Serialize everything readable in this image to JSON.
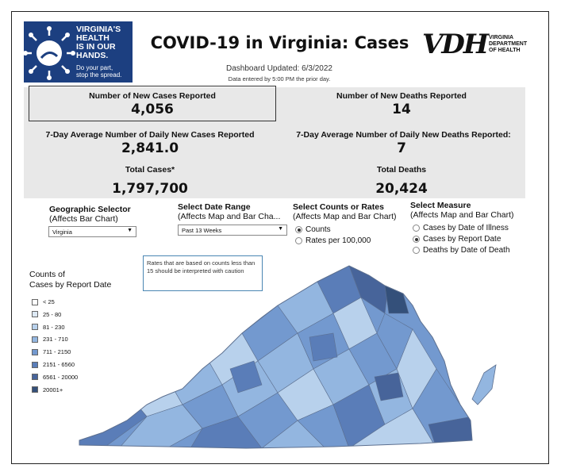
{
  "logo": {
    "line1": "VIRGINIA'S",
    "line2": "HEALTH",
    "line3": "IS IN OUR",
    "line4": "HANDS.",
    "sub1": "Do your part,",
    "sub2": "stop the spread."
  },
  "title": "COVID-19 in Virginia: Cases",
  "vdh": {
    "mark": "VDH",
    "line1": "VIRGINIA",
    "line2": "DEPARTMENT",
    "line3": "OF HEALTH"
  },
  "updated": "Dashboard Updated: 6/3/2022",
  "entered": "Data entered by 5:00 PM the prior day.",
  "stats": {
    "new_cases_label": "Number of New Cases Reported",
    "new_cases_value": "4,056",
    "new_deaths_label": "Number of New Deaths Reported",
    "new_deaths_value": "14",
    "avg_cases_label": "7-Day Average Number of Daily New Cases Reported",
    "avg_cases_value": "2,841.0",
    "avg_deaths_label": "7-Day Average Number of Daily New Deaths Reported:",
    "avg_deaths_value": "7",
    "total_cases_label": "Total Cases*",
    "total_cases_value": "1,797,700",
    "total_deaths_label": "Total Deaths",
    "total_deaths_value": "20,424"
  },
  "controls": {
    "geo_title": "Geographic Selector",
    "geo_sub": "(Affects Bar Chart)",
    "geo_value": "Virginia",
    "date_title": "Select Date Range",
    "date_sub": "(Affects Map and Bar Cha...",
    "date_value": "Past 13 Weeks",
    "counts_title": "Select Counts or Rates",
    "counts_sub": "(Affects Map and Bar Chart)",
    "counts_opt1": "Counts",
    "counts_opt2": "Rates per 100,000",
    "measure_title": "Select Measure",
    "measure_sub": "(Affects Map and Bar Chart)",
    "measure_opt1": "Cases by Date of Illness",
    "measure_opt2": "Cases by Report Date",
    "measure_opt3": "Deaths by Date of Death"
  },
  "note": "Rates that are based on counts less than 15 should be interpreted with caution",
  "legend": {
    "title1": "Counts of",
    "title2": "Cases by Report Date",
    "items": [
      {
        "label": "< 25",
        "color": "#ffffff"
      },
      {
        "label": "25 - 80",
        "color": "#dde9f5"
      },
      {
        "label": "81 - 230",
        "color": "#b8d1ec"
      },
      {
        "label": "231 - 710",
        "color": "#93b6e0"
      },
      {
        "label": "711 - 2150",
        "color": "#7399cf"
      },
      {
        "label": "2151 - 6560",
        "color": "#5a7db8"
      },
      {
        "label": "6561 - 20000",
        "color": "#47649a"
      },
      {
        "label": "20001+",
        "color": "#34507a"
      }
    ]
  }
}
